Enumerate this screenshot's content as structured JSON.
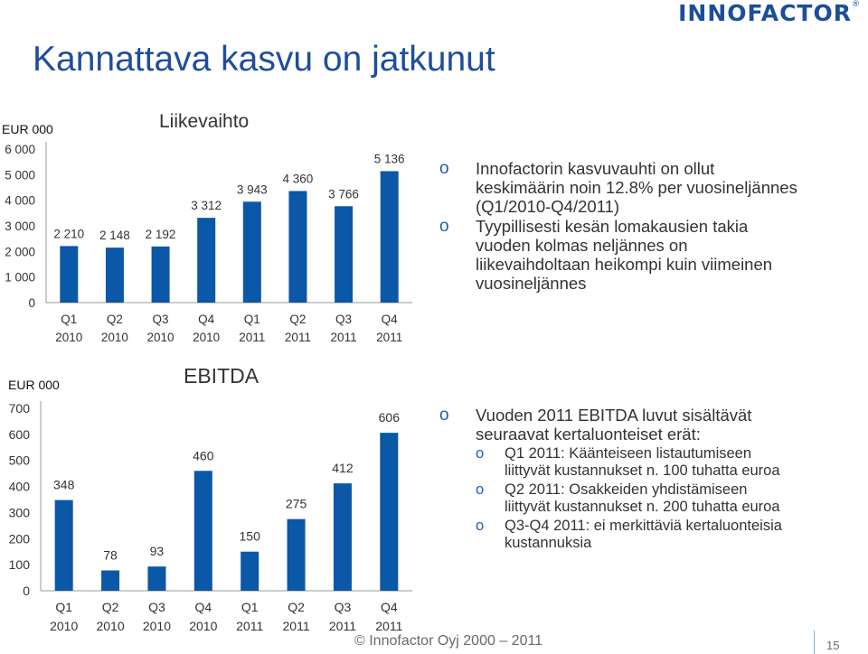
{
  "brand": {
    "logo_text": "INNOFACTOR",
    "registered": "®",
    "accent": "#1f4e9a",
    "bar_color": "#0b57a8"
  },
  "title": "Kannattava kasvu on jatkunut",
  "chart_data": [
    {
      "type": "bar",
      "title": "Liikevaihto",
      "unit_label": "EUR  000",
      "categories": [
        [
          "Q1",
          "2010"
        ],
        [
          "Q2",
          "2010"
        ],
        [
          "Q3",
          "2010"
        ],
        [
          "Q4",
          "2010"
        ],
        [
          "Q1",
          "2011"
        ],
        [
          "Q2",
          "2011"
        ],
        [
          "Q3",
          "2011"
        ],
        [
          "Q4",
          "2011"
        ]
      ],
      "values": [
        2210,
        2148,
        2192,
        3312,
        3943,
        4360,
        3766,
        5136
      ],
      "data_labels": [
        "2 210",
        "2 148",
        "2 192",
        "3 312",
        "3 943",
        "4 360",
        "3 766",
        "5 136"
      ],
      "yticks": [
        0,
        1000,
        2000,
        3000,
        4000,
        5000,
        6000
      ],
      "ytick_labels": [
        "0",
        "1 000",
        "2 000",
        "3 000",
        "4 000",
        "5 000",
        "6 000"
      ],
      "ylim": [
        0,
        6000
      ]
    },
    {
      "type": "bar",
      "title": "EBITDA",
      "unit_label": "EUR  000",
      "categories": [
        [
          "Q1",
          "2010"
        ],
        [
          "Q2",
          "2010"
        ],
        [
          "Q3",
          "2010"
        ],
        [
          "Q4",
          "2010"
        ],
        [
          "Q1",
          "2011"
        ],
        [
          "Q2",
          "2011"
        ],
        [
          "Q3",
          "2011"
        ],
        [
          "Q4",
          "2011"
        ]
      ],
      "values": [
        348,
        78,
        93,
        460,
        150,
        275,
        412,
        606
      ],
      "data_labels": [
        "348",
        "78",
        "93",
        "460",
        "150",
        "275",
        "412",
        "606"
      ],
      "yticks": [
        0,
        100,
        200,
        300,
        400,
        500,
        600,
        700
      ],
      "ytick_labels": [
        "0",
        "100",
        "200",
        "300",
        "400",
        "500",
        "600",
        "700"
      ],
      "ylim": [
        0,
        700
      ]
    }
  ],
  "bullets_top": {
    "marker": "o",
    "items": [
      [
        "Innofactorin kasvuvauhti on ollut",
        "keskimäärin noin 12.8% per vuosineljännes",
        "(Q1/2010-Q4/2011)"
      ],
      [
        "Tyypillisesti kesän lomakausien takia",
        "vuoden kolmas neljännes on",
        "liikevaihdoltaan heikompi kuin viimeinen",
        "vuosineljännes"
      ]
    ]
  },
  "bullets_bottom": {
    "marker": "o",
    "main": [
      "Vuoden 2011 EBITDA luvut sisältävät",
      "seuraavat kertaluonteiset erät:"
    ],
    "sub": [
      [
        "Q1 2011: Käänteiseen listautumiseen",
        "liittyvät kustannukset n. 100 tuhatta euroa"
      ],
      [
        "Q2 2011: Osakkeiden yhdistämiseen",
        "liittyvät kustannukset n. 200 tuhatta euroa"
      ],
      [
        "Q3-Q4 2011: ei merkittäviä kertaluonteisia",
        "kustannuksia"
      ]
    ]
  },
  "footer": "© Innofactor  Oyj 2000 – 2011",
  "page_number": "15"
}
